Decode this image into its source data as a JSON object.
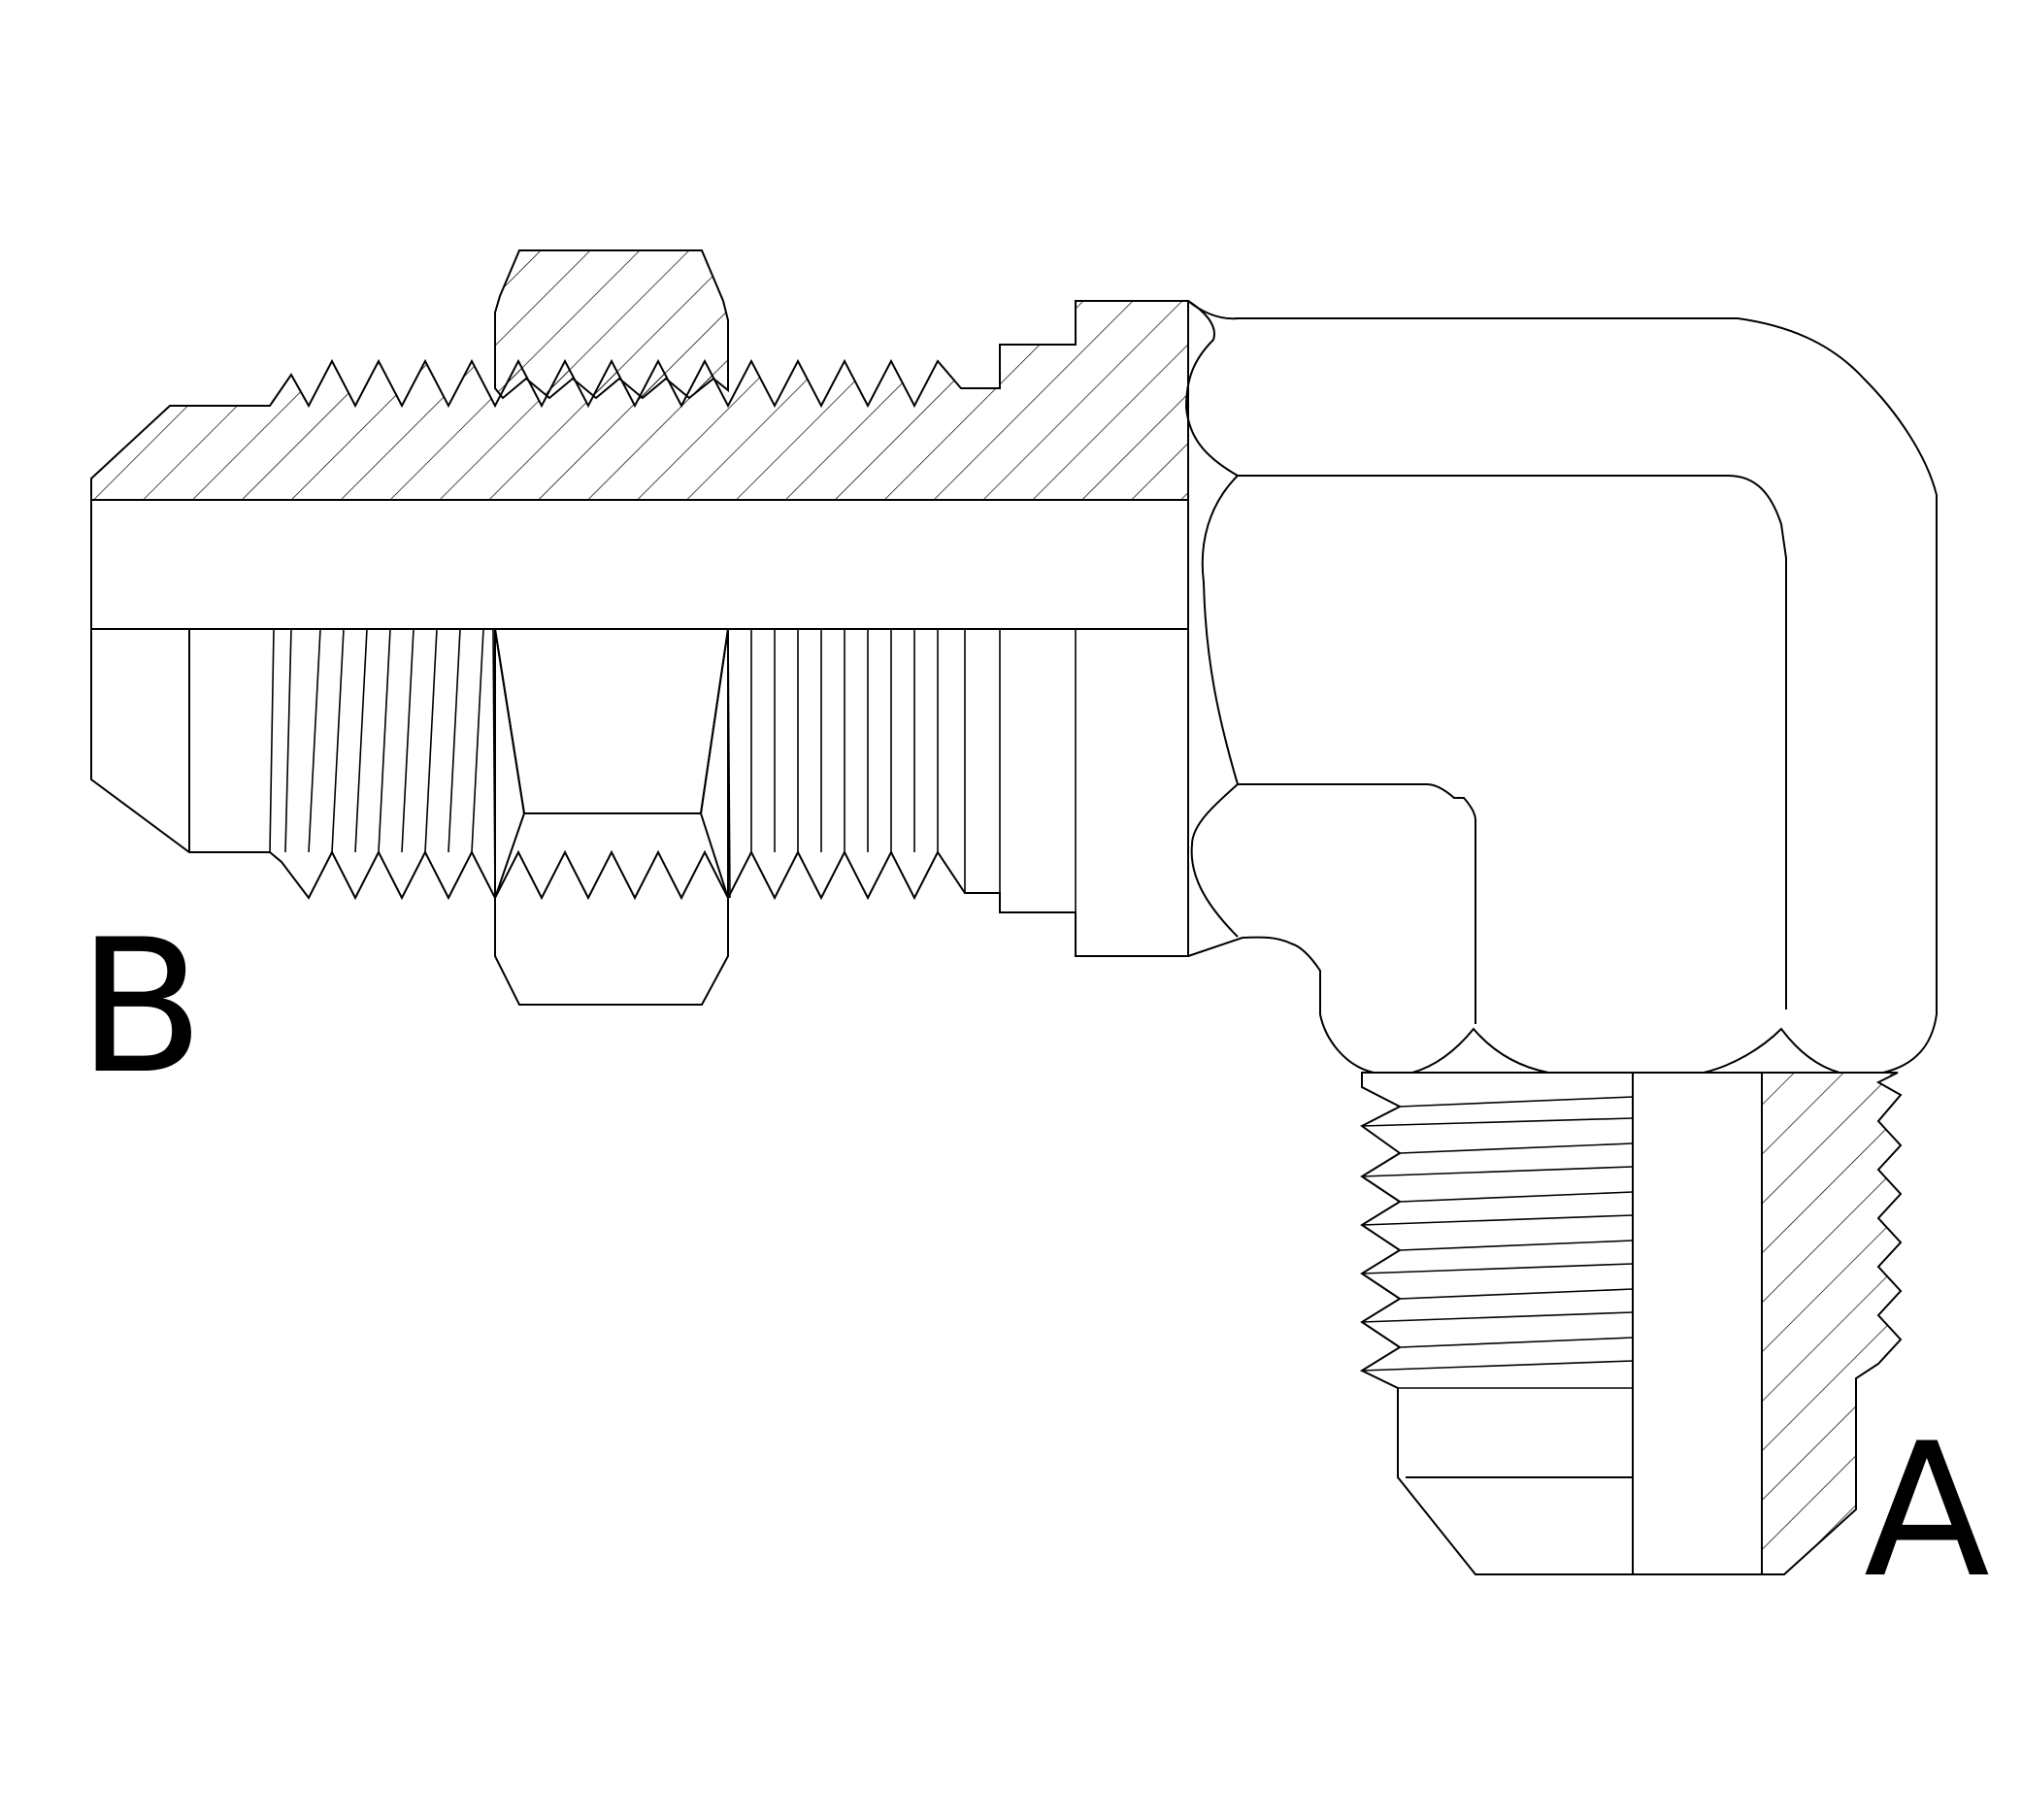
{
  "diagram": {
    "labels": {
      "port_b": "B",
      "port_a": "A"
    },
    "colors": {
      "line": "#000000",
      "background": "#ffffff"
    }
  }
}
